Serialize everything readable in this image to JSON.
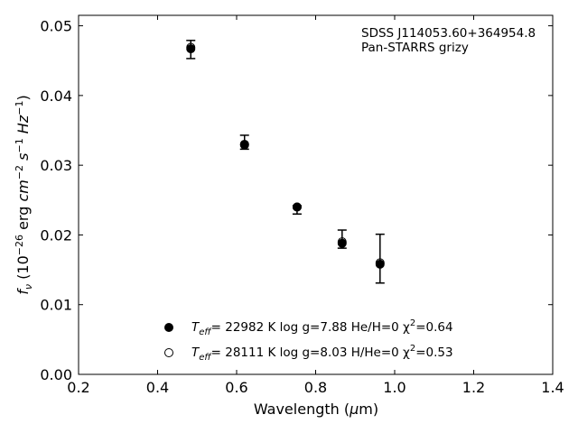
{
  "chart_data": {
    "type": "scatter",
    "xlabel": "Wavelength (μm)",
    "ylabel": "f_ν (10^−26 erg cm^−2 s^−1 Hz^−1)",
    "xlim": [
      0.2,
      1.4
    ],
    "ylim": [
      0.0,
      0.0515
    ],
    "x_ticks": [
      0.2,
      0.4,
      0.6,
      0.8,
      1.0,
      1.2,
      1.4
    ],
    "x_tick_labels": [
      "0.2",
      "0.4",
      "0.6",
      "0.8",
      "1.0",
      "1.2",
      "1.4"
    ],
    "y_ticks": [
      0.0,
      0.01,
      0.02,
      0.03,
      0.04,
      0.05
    ],
    "y_tick_labels": [
      "0.00",
      "0.01",
      "0.02",
      "0.03",
      "0.04",
      "0.05"
    ],
    "grid": false,
    "annotations": [
      "SDSS J114053.60+364954.8",
      "Pan-STARRS grizy"
    ],
    "observed": {
      "x": [
        0.484,
        0.62,
        0.753,
        0.867,
        0.963
      ],
      "y": [
        0.0466,
        0.0333,
        0.0236,
        0.0194,
        0.0166
      ],
      "err": [
        0.0013,
        0.001,
        0.0006,
        0.0013,
        0.0035
      ]
    },
    "series": [
      {
        "name": "Teff= 22982 K  log g=7.88  He/H=0  χ²=0.64",
        "marker": "filled-circle",
        "x": [
          0.484,
          0.62,
          0.753,
          0.867,
          0.963
        ],
        "y": [
          0.0467,
          0.0329,
          0.024,
          0.0188,
          0.0158
        ]
      },
      {
        "name": "Teff= 28111 K  log g=8.03  H/He=0  χ²=0.53",
        "marker": "open-circle",
        "x": [
          0.484,
          0.62,
          0.753,
          0.867,
          0.963
        ],
        "y": [
          0.0469,
          0.033,
          0.024,
          0.019,
          0.016
        ]
      }
    ],
    "legend": [
      {
        "prefix": "T",
        "sub": "eff",
        "rest": "= 22982 K  log g=7.88  He/H=0  χ",
        "sup": "2",
        "tail": "=0.64"
      },
      {
        "prefix": "T",
        "sub": "eff",
        "rest": "= 28111 K  log g=8.03  H/He=0  χ",
        "sup": "2",
        "tail": "=0.53"
      }
    ],
    "legend_position": "lower-center",
    "colors": {
      "marker": "#000000",
      "axes": "#000000"
    }
  }
}
